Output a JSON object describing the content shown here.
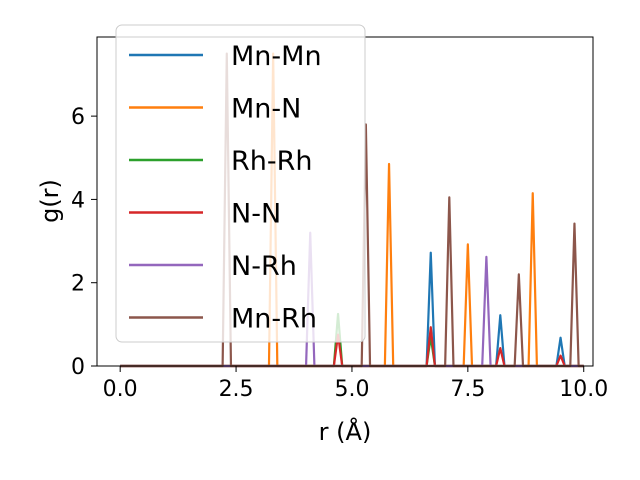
{
  "chart_data": {
    "type": "line",
    "title": "",
    "xlabel": "r (Å)",
    "ylabel": "g(r)",
    "xlim": [
      -0.5,
      10.2
    ],
    "ylim": [
      0,
      7.9
    ],
    "xticks": [
      0.0,
      2.5,
      5.0,
      7.5,
      10.0
    ],
    "xtick_labels": [
      "0.0",
      "2.5",
      "5.0",
      "7.5",
      "10.0"
    ],
    "yticks": [
      0,
      2,
      4,
      6
    ],
    "ytick_labels": [
      "0",
      "2",
      "4",
      "6"
    ],
    "grid": false,
    "legend_position": "upper-left",
    "peak_half_width": 0.09,
    "x_range": [
      0.0,
      10.0
    ],
    "series": [
      {
        "name": "Mn-Mn",
        "color": "#1f77b4",
        "peaks": [
          [
            6.7,
            2.72
          ],
          [
            8.2,
            1.22
          ],
          [
            9.5,
            0.68
          ]
        ]
      },
      {
        "name": "Mn-N",
        "color": "#ff7f0e",
        "peaks": [
          [
            3.3,
            7.5
          ],
          [
            5.8,
            4.85
          ],
          [
            7.5,
            2.92
          ],
          [
            8.9,
            4.15
          ]
        ]
      },
      {
        "name": "Rh-Rh",
        "color": "#2ca02c",
        "peaks": [
          [
            4.7,
            1.25
          ],
          [
            6.7,
            0.7
          ]
        ]
      },
      {
        "name": "N-N",
        "color": "#d62728",
        "peaks": [
          [
            4.7,
            0.75
          ],
          [
            6.7,
            0.93
          ],
          [
            8.2,
            0.43
          ],
          [
            9.5,
            0.25
          ]
        ]
      },
      {
        "name": "N-Rh",
        "color": "#9467bd",
        "peaks": [
          [
            4.1,
            3.2
          ],
          [
            7.9,
            2.62
          ]
        ]
      },
      {
        "name": "Mn-Rh",
        "color": "#8c564b",
        "peaks": [
          [
            2.3,
            7.5
          ],
          [
            5.3,
            5.8
          ],
          [
            7.1,
            4.05
          ],
          [
            8.6,
            2.2
          ],
          [
            9.8,
            3.42
          ]
        ]
      }
    ]
  }
}
